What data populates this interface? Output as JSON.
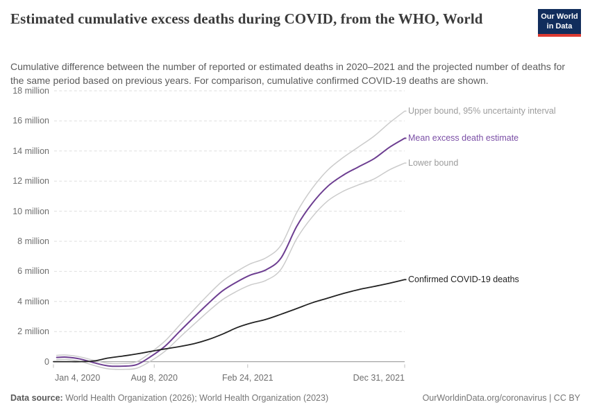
{
  "logo": {
    "line1": "Our World",
    "line2": "in Data"
  },
  "footer": {
    "source_label": "Data source:",
    "source_text": "World Health Organization (2026); World Health Organization (2023)",
    "url": "OurWorldinData.org/coronavirus",
    "divider": "|",
    "license": "CC BY"
  },
  "colors": {
    "background": "#ffffff",
    "title": "#3b3b3b",
    "subtitle": "#5b5b5b",
    "axis_label": "#6e6e6e",
    "gridline": "#dedede",
    "zero_line": "#a5a5a5",
    "tick_mark": "#bfbfbf",
    "logo_navy": "#112d5c",
    "logo_red": "#dc3a31",
    "purple": "#6d3e91",
    "bound_gray": "#cbcbcb",
    "black": "#222222"
  },
  "chart_data": {
    "type": "line",
    "title": "Estimated cumulative excess deaths during COVID, from the WHO, World",
    "subtitle": "Cumulative difference between the number of reported or estimated deaths in 2020–2021 and the projected number of deaths for the same period based on previous years. For comparison, cumulative confirmed COVID-19 deaths are shown.",
    "xlabel": "",
    "ylabel": "",
    "y_unit": "million deaths",
    "ylim": [
      -0.6,
      18
    ],
    "grid": true,
    "legend_position": "end-of-line labels",
    "y_ticks": [
      {
        "label": "0",
        "value": 0
      },
      {
        "label": "2 million",
        "value": 2
      },
      {
        "label": "4 million",
        "value": 4
      },
      {
        "label": "6 million",
        "value": 6
      },
      {
        "label": "8 million",
        "value": 8
      },
      {
        "label": "10 million",
        "value": 10
      },
      {
        "label": "12 million",
        "value": 12
      },
      {
        "label": "14 million",
        "value": 14
      },
      {
        "label": "16 million",
        "value": 16
      },
      {
        "label": "18 million",
        "value": 18
      }
    ],
    "x_ticks": [
      {
        "label": "Jan 4, 2020",
        "date": "2020-01-04",
        "f": 0
      },
      {
        "label": "Aug 8, 2020",
        "date": "2020-08-08",
        "f": 0.287
      },
      {
        "label": "Feb 24, 2021",
        "date": "2021-02-24",
        "f": 0.553
      },
      {
        "label": "Dec 31, 2021",
        "date": "2021-12-31",
        "f": 1
      }
    ],
    "series": [
      {
        "id": "upper-bound",
        "name": "Upper bound, 95% uncertainty interval",
        "line_color": "#cbcbcb",
        "label_color": "#9c9c9c",
        "line_width": 1.5,
        "points": [
          [
            "2020-01-11",
            0.42
          ],
          [
            "2020-02-01",
            0.44
          ],
          [
            "2020-03-01",
            0.32
          ],
          [
            "2020-04-01",
            0.08
          ],
          [
            "2020-05-01",
            -0.11
          ],
          [
            "2020-06-01",
            -0.13
          ],
          [
            "2020-07-01",
            -0.01
          ],
          [
            "2020-08-01",
            0.62
          ],
          [
            "2020-09-01",
            1.4
          ],
          [
            "2020-10-01",
            2.42
          ],
          [
            "2020-11-01",
            3.45
          ],
          [
            "2020-12-01",
            4.43
          ],
          [
            "2021-01-01",
            5.35
          ],
          [
            "2021-02-01",
            6.0
          ],
          [
            "2021-03-01",
            6.5
          ],
          [
            "2021-04-01",
            6.9
          ],
          [
            "2021-05-01",
            7.75
          ],
          [
            "2021-06-01",
            9.92
          ],
          [
            "2021-07-01",
            11.5
          ],
          [
            "2021-08-01",
            12.73
          ],
          [
            "2021-09-01",
            13.58
          ],
          [
            "2021-10-01",
            14.27
          ],
          [
            "2021-11-01",
            15.0
          ],
          [
            "2021-12-01",
            15.87
          ],
          [
            "2021-12-31",
            16.65
          ]
        ]
      },
      {
        "id": "lower-bound",
        "name": "Lower bound",
        "line_color": "#cbcbcb",
        "label_color": "#9c9c9c",
        "line_width": 1.5,
        "points": [
          [
            "2020-01-11",
            0.13
          ],
          [
            "2020-02-01",
            0.15
          ],
          [
            "2020-03-01",
            0.02
          ],
          [
            "2020-04-01",
            -0.26
          ],
          [
            "2020-05-01",
            -0.48
          ],
          [
            "2020-06-01",
            -0.51
          ],
          [
            "2020-07-01",
            -0.44
          ],
          [
            "2020-08-01",
            0.05
          ],
          [
            "2020-09-01",
            0.72
          ],
          [
            "2020-10-01",
            1.6
          ],
          [
            "2020-11-01",
            2.48
          ],
          [
            "2020-12-01",
            3.32
          ],
          [
            "2021-01-01",
            4.12
          ],
          [
            "2021-02-01",
            4.68
          ],
          [
            "2021-03-01",
            5.09
          ],
          [
            "2021-04-01",
            5.4
          ],
          [
            "2021-05-01",
            6.15
          ],
          [
            "2021-06-01",
            8.18
          ],
          [
            "2021-07-01",
            9.6
          ],
          [
            "2021-08-01",
            10.68
          ],
          [
            "2021-09-01",
            11.33
          ],
          [
            "2021-10-01",
            11.75
          ],
          [
            "2021-11-01",
            12.15
          ],
          [
            "2021-12-01",
            12.75
          ],
          [
            "2021-12-31",
            13.2
          ]
        ]
      },
      {
        "id": "mean-excess",
        "name": "Mean excess death estimate",
        "line_color": "#6d3e91",
        "label_color": "#7b4fa6",
        "line_width": 2,
        "points": [
          [
            "2020-01-11",
            0.28
          ],
          [
            "2020-02-01",
            0.3
          ],
          [
            "2020-03-01",
            0.18
          ],
          [
            "2020-04-01",
            -0.08
          ],
          [
            "2020-05-01",
            -0.28
          ],
          [
            "2020-06-01",
            -0.3
          ],
          [
            "2020-07-01",
            -0.2
          ],
          [
            "2020-08-01",
            0.35
          ],
          [
            "2020-09-01",
            1.05
          ],
          [
            "2020-10-01",
            2.0
          ],
          [
            "2020-11-01",
            2.95
          ],
          [
            "2020-12-01",
            3.85
          ],
          [
            "2021-01-01",
            4.7
          ],
          [
            "2021-02-01",
            5.3
          ],
          [
            "2021-03-01",
            5.75
          ],
          [
            "2021-04-01",
            6.1
          ],
          [
            "2021-05-01",
            6.9
          ],
          [
            "2021-06-01",
            9.0
          ],
          [
            "2021-07-01",
            10.5
          ],
          [
            "2021-08-01",
            11.65
          ],
          [
            "2021-09-01",
            12.4
          ],
          [
            "2021-10-01",
            12.95
          ],
          [
            "2021-11-01",
            13.5
          ],
          [
            "2021-12-01",
            14.25
          ],
          [
            "2021-12-31",
            14.85
          ]
        ]
      },
      {
        "id": "confirmed",
        "name": "Confirmed COVID-19 deaths",
        "line_color": "#222222",
        "label_color": "#222222",
        "line_width": 1.8,
        "points": [
          [
            "2020-01-04",
            0.0
          ],
          [
            "2020-02-01",
            0.0
          ],
          [
            "2020-03-01",
            0.0
          ],
          [
            "2020-04-01",
            0.05
          ],
          [
            "2020-05-01",
            0.24
          ],
          [
            "2020-06-01",
            0.37
          ],
          [
            "2020-07-01",
            0.51
          ],
          [
            "2020-08-01",
            0.68
          ],
          [
            "2020-09-01",
            0.85
          ],
          [
            "2020-10-01",
            1.0
          ],
          [
            "2020-11-01",
            1.19
          ],
          [
            "2020-12-01",
            1.46
          ],
          [
            "2021-01-01",
            1.83
          ],
          [
            "2021-02-01",
            2.26
          ],
          [
            "2021-03-01",
            2.55
          ],
          [
            "2021-04-01",
            2.81
          ],
          [
            "2021-05-01",
            3.15
          ],
          [
            "2021-06-01",
            3.53
          ],
          [
            "2021-07-01",
            3.91
          ],
          [
            "2021-08-01",
            4.22
          ],
          [
            "2021-09-01",
            4.53
          ],
          [
            "2021-10-01",
            4.79
          ],
          [
            "2021-11-01",
            5.0
          ],
          [
            "2021-12-01",
            5.21
          ],
          [
            "2021-12-31",
            5.45
          ]
        ]
      }
    ]
  }
}
